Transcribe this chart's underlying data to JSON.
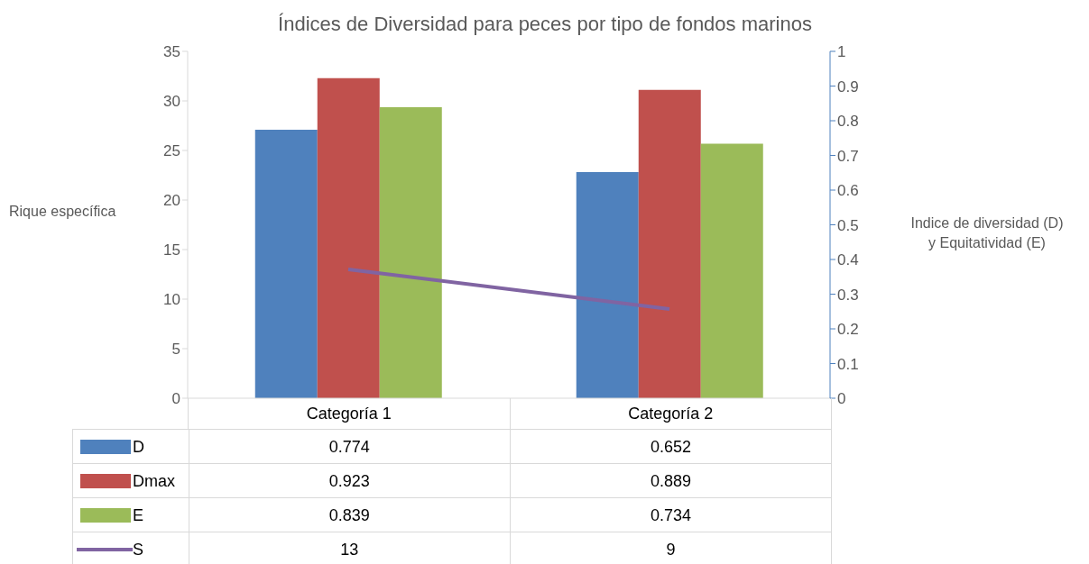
{
  "chart_data": {
    "type": "bar",
    "title": "Índices de Diversidad para peces por tipo de fondos marinos",
    "ylabel": "Rique específica",
    "y2label": "Indice de diversidad (D) y Equitatividad (E)",
    "categories": [
      "Categoría 1",
      "Categoría 2"
    ],
    "series": [
      {
        "name": "D",
        "color": "#4f81bd",
        "values": [
          0.774,
          0.652
        ],
        "axis": "y2"
      },
      {
        "name": "Dmax",
        "color": "#c0504d",
        "values": [
          0.923,
          0.889
        ],
        "axis": "y2"
      },
      {
        "name": "E",
        "color": "#9bbb59",
        "values": [
          0.839,
          0.734
        ],
        "axis": "y2"
      },
      {
        "name": "S",
        "type": "line",
        "color": "#8064a2",
        "values": [
          13,
          9
        ],
        "axis": "y"
      }
    ],
    "ylim": [
      0,
      35
    ],
    "yticks": [
      0,
      5,
      10,
      15,
      20,
      25,
      30,
      35
    ],
    "y2lim": [
      0,
      1
    ],
    "y2ticks": [
      0,
      0.1,
      0.2,
      0.3,
      0.4,
      0.5,
      0.6,
      0.7,
      0.8,
      0.9,
      1
    ],
    "legend": "bottom",
    "data_labels": true,
    "marker": "none"
  }
}
